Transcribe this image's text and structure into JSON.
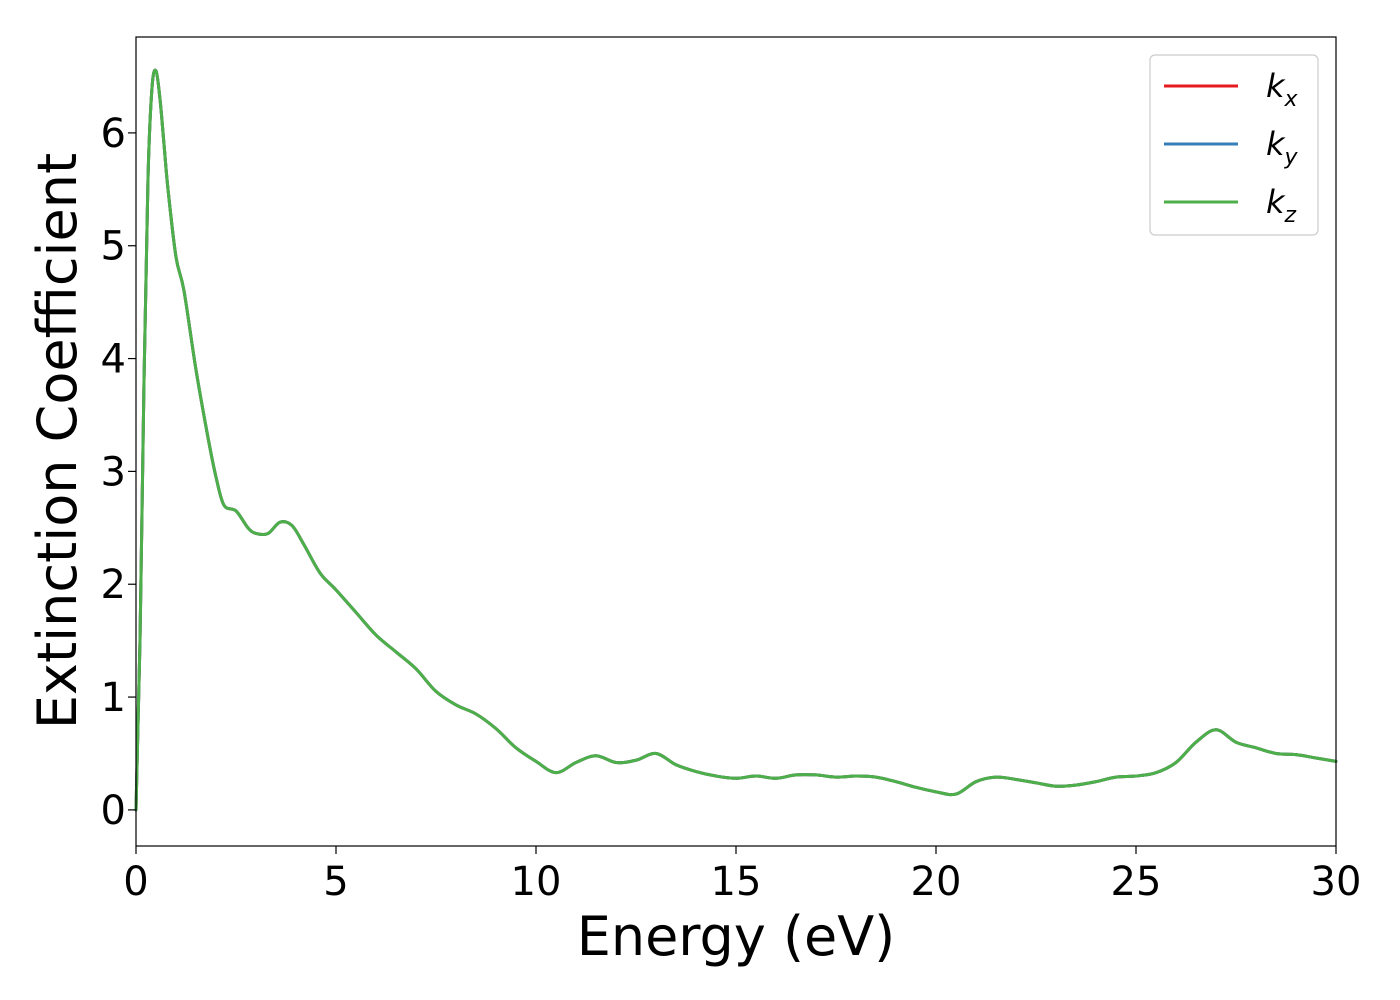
{
  "chart_data": {
    "type": "line",
    "title": "",
    "xlabel": "Energy (eV)",
    "ylabel": "Extinction Coefficient",
    "xlim": [
      0,
      30
    ],
    "ylim": [
      -0.32,
      6.85
    ],
    "xticks": [
      0,
      5,
      10,
      15,
      20,
      25,
      30
    ],
    "yticks": [
      0,
      1,
      2,
      3,
      4,
      5,
      6
    ],
    "grid": false,
    "legend_position": "top-right",
    "x": [
      0,
      0.1,
      0.2,
      0.3,
      0.4,
      0.5,
      0.6,
      0.7,
      0.8,
      1.0,
      1.2,
      1.5,
      1.8,
      2.0,
      2.2,
      2.5,
      2.8,
      3.0,
      3.3,
      3.6,
      3.9,
      4.2,
      4.6,
      5.0,
      5.5,
      6.0,
      6.5,
      7.0,
      7.5,
      8.0,
      8.5,
      9.0,
      9.5,
      10.0,
      10.5,
      11.0,
      11.5,
      12.0,
      12.5,
      13.0,
      13.5,
      14.0,
      14.5,
      15.0,
      15.5,
      16.0,
      16.5,
      17.0,
      17.5,
      18.0,
      18.5,
      19.0,
      19.5,
      20.0,
      20.5,
      21.0,
      21.5,
      22.0,
      22.5,
      23.0,
      23.5,
      24.0,
      24.5,
      25.0,
      25.5,
      26.0,
      26.5,
      27.0,
      27.5,
      28.0,
      28.5,
      29.0,
      29.5,
      30.0
    ],
    "series": [
      {
        "name": "k_x",
        "color": "#e41a1c",
        "values": [
          0.0,
          1.5,
          3.8,
          5.6,
          6.4,
          6.55,
          6.3,
          5.9,
          5.5,
          4.9,
          4.6,
          3.9,
          3.3,
          2.95,
          2.7,
          2.65,
          2.5,
          2.45,
          2.45,
          2.55,
          2.52,
          2.35,
          2.1,
          1.95,
          1.75,
          1.55,
          1.4,
          1.25,
          1.05,
          0.93,
          0.85,
          0.72,
          0.55,
          0.43,
          0.33,
          0.42,
          0.48,
          0.42,
          0.44,
          0.5,
          0.4,
          0.34,
          0.3,
          0.28,
          0.3,
          0.28,
          0.31,
          0.31,
          0.29,
          0.3,
          0.29,
          0.25,
          0.2,
          0.16,
          0.14,
          0.25,
          0.29,
          0.27,
          0.24,
          0.21,
          0.22,
          0.25,
          0.29,
          0.3,
          0.33,
          0.42,
          0.6,
          0.71,
          0.6,
          0.55,
          0.5,
          0.49,
          0.46,
          0.43
        ]
      },
      {
        "name": "k_y",
        "color": "#377eb8",
        "values": [
          0.0,
          1.5,
          3.8,
          5.6,
          6.4,
          6.55,
          6.3,
          5.9,
          5.5,
          4.9,
          4.6,
          3.9,
          3.3,
          2.95,
          2.7,
          2.65,
          2.5,
          2.45,
          2.45,
          2.55,
          2.52,
          2.35,
          2.1,
          1.95,
          1.75,
          1.55,
          1.4,
          1.25,
          1.05,
          0.93,
          0.85,
          0.72,
          0.55,
          0.43,
          0.33,
          0.42,
          0.48,
          0.42,
          0.44,
          0.5,
          0.4,
          0.34,
          0.3,
          0.28,
          0.3,
          0.28,
          0.31,
          0.31,
          0.29,
          0.3,
          0.29,
          0.25,
          0.2,
          0.16,
          0.14,
          0.25,
          0.29,
          0.27,
          0.24,
          0.21,
          0.22,
          0.25,
          0.29,
          0.3,
          0.33,
          0.42,
          0.6,
          0.71,
          0.6,
          0.55,
          0.5,
          0.49,
          0.46,
          0.43
        ]
      },
      {
        "name": "k_z",
        "color": "#4daf4a",
        "values": [
          0.0,
          1.5,
          3.8,
          5.6,
          6.4,
          6.55,
          6.3,
          5.9,
          5.5,
          4.9,
          4.6,
          3.9,
          3.3,
          2.95,
          2.7,
          2.65,
          2.5,
          2.45,
          2.45,
          2.55,
          2.52,
          2.35,
          2.1,
          1.95,
          1.75,
          1.55,
          1.4,
          1.25,
          1.05,
          0.93,
          0.85,
          0.72,
          0.55,
          0.43,
          0.33,
          0.42,
          0.48,
          0.42,
          0.44,
          0.5,
          0.4,
          0.34,
          0.3,
          0.28,
          0.3,
          0.28,
          0.31,
          0.31,
          0.29,
          0.3,
          0.29,
          0.25,
          0.2,
          0.16,
          0.14,
          0.25,
          0.29,
          0.27,
          0.24,
          0.21,
          0.22,
          0.25,
          0.29,
          0.3,
          0.33,
          0.42,
          0.6,
          0.71,
          0.6,
          0.55,
          0.5,
          0.49,
          0.46,
          0.43
        ]
      }
    ],
    "legend": [
      {
        "base": "k",
        "sub": "x",
        "color": "#e41a1c"
      },
      {
        "base": "k",
        "sub": "y",
        "color": "#377eb8"
      },
      {
        "base": "k",
        "sub": "z",
        "color": "#4daf4a"
      }
    ]
  }
}
